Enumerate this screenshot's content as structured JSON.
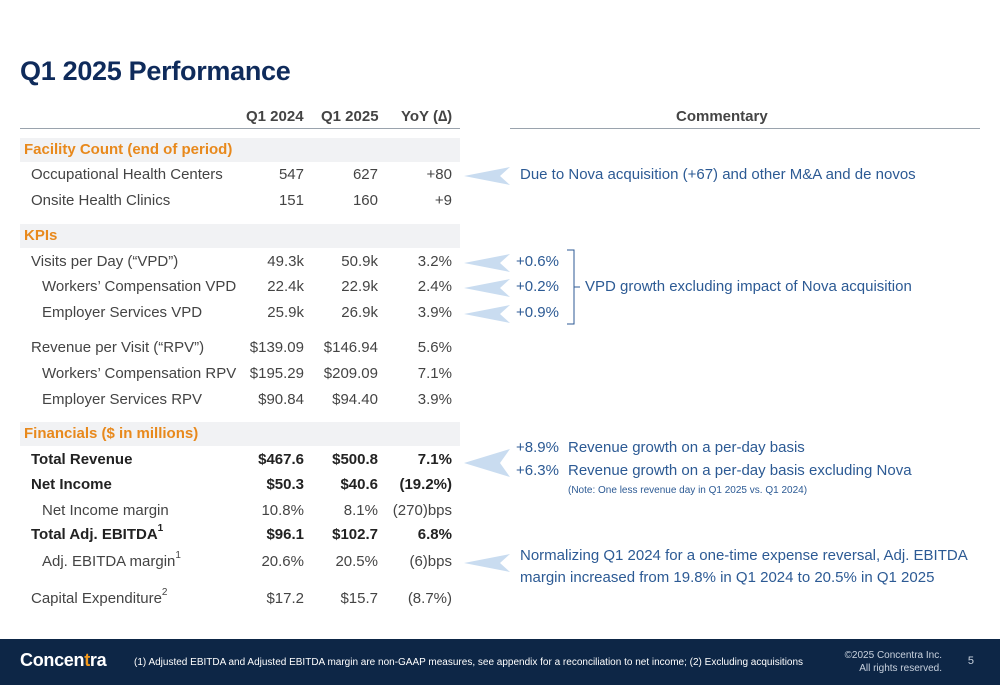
{
  "title": "Q1 2025 Performance",
  "headers": {
    "q1_2024": "Q1 2024",
    "q1_2025": "Q1 2025",
    "yoy": "YoY (∆)",
    "commentary": "Commentary"
  },
  "sections": {
    "facility": "Facility Count (end of period)",
    "kpis": "KPIs",
    "financials": "Financials ($ in millions)"
  },
  "rows": {
    "occ": {
      "label": "Occupational Health Centers",
      "q1_2024": "547",
      "q1_2025": "627",
      "yoy": "+80"
    },
    "onsite": {
      "label": "Onsite Health Clinics",
      "q1_2024": "151",
      "q1_2025": "160",
      "yoy": "+9"
    },
    "vpd": {
      "label": "Visits per Day (“VPD”)",
      "q1_2024": "49.3k",
      "q1_2025": "50.9k",
      "yoy": "3.2%"
    },
    "wc_vpd": {
      "label": "Workers’ Compensation VPD",
      "q1_2024": "22.4k",
      "q1_2025": "22.9k",
      "yoy": "2.4%"
    },
    "es_vpd": {
      "label": "Employer Services VPD",
      "q1_2024": "25.9k",
      "q1_2025": "26.9k",
      "yoy": "3.9%"
    },
    "rpv": {
      "label": "Revenue per Visit (“RPV”)",
      "q1_2024": "$139.09",
      "q1_2025": "$146.94",
      "yoy": "5.6%"
    },
    "wc_rpv": {
      "label": "Workers’ Compensation RPV",
      "q1_2024": "$195.29",
      "q1_2025": "$209.09",
      "yoy": "7.1%"
    },
    "es_rpv": {
      "label": "Employer Services RPV",
      "q1_2024": "$90.84",
      "q1_2025": "$94.40",
      "yoy": "3.9%"
    },
    "revenue": {
      "label": "Total Revenue",
      "q1_2024": "$467.6",
      "q1_2025": "$500.8",
      "yoy": "7.1%"
    },
    "net_income": {
      "label": "Net Income",
      "q1_2024": "$50.3",
      "q1_2025": "$40.6",
      "yoy": "(19.2%)"
    },
    "ni_margin": {
      "label": "Net Income margin",
      "q1_2024": "10.8%",
      "q1_2025": "8.1%",
      "yoy": "(270)bps"
    },
    "ebitda": {
      "label": "Total Adj. EBITDA",
      "sup": "1",
      "q1_2024": "$96.1",
      "q1_2025": "$102.7",
      "yoy": "6.8%"
    },
    "ebitda_margin": {
      "label": "Adj. EBITDA margin",
      "sup": "1",
      "q1_2024": "20.6%",
      "q1_2025": "20.5%",
      "yoy": "(6)bps"
    },
    "capex": {
      "label": "Capital Expenditure",
      "sup": "2",
      "q1_2024": "$17.2",
      "q1_2025": "$15.7",
      "yoy": "(8.7%)"
    }
  },
  "commentary": {
    "facility": "Due to Nova acquisition (+67) and other M&A and de novos",
    "vpd_1": "+0.6%",
    "vpd_2": "+0.2%",
    "vpd_3": "+0.9%",
    "vpd_note": "VPD growth excluding impact of Nova acquisition",
    "rev_pct_1": "+8.9%",
    "rev_text_1": "Revenue growth on a per-day basis",
    "rev_pct_2": "+6.3%",
    "rev_text_2": "Revenue growth on a per-day basis excluding Nova",
    "rev_note": "(Note: One less revenue day in Q1 2025 vs. Q1 2024)",
    "ebitda_1": "Normalizing Q1 2024 for a one-time expense reversal, Adj. EBITDA",
    "ebitda_2": "margin increased from 19.8% in Q1 2024 to 20.5% in Q1 2025"
  },
  "footer": {
    "logo_pre": "Concen",
    "logo_accent": "t",
    "logo_post": "ra",
    "footnote": "(1) Adjusted EBITDA and Adjusted EBITDA margin are non-GAAP measures, see appendix for a reconciliation to net income; (2) Excluding acquisitions",
    "copyright_1": "©2025 Concentra Inc.",
    "copyright_2": "All rights reserved.",
    "page": "5"
  },
  "colors": {
    "navy": "#0f2b5b",
    "orange": "#e8891c",
    "commentary_blue": "#2c5a94",
    "footer_bg": "#0d2646"
  }
}
